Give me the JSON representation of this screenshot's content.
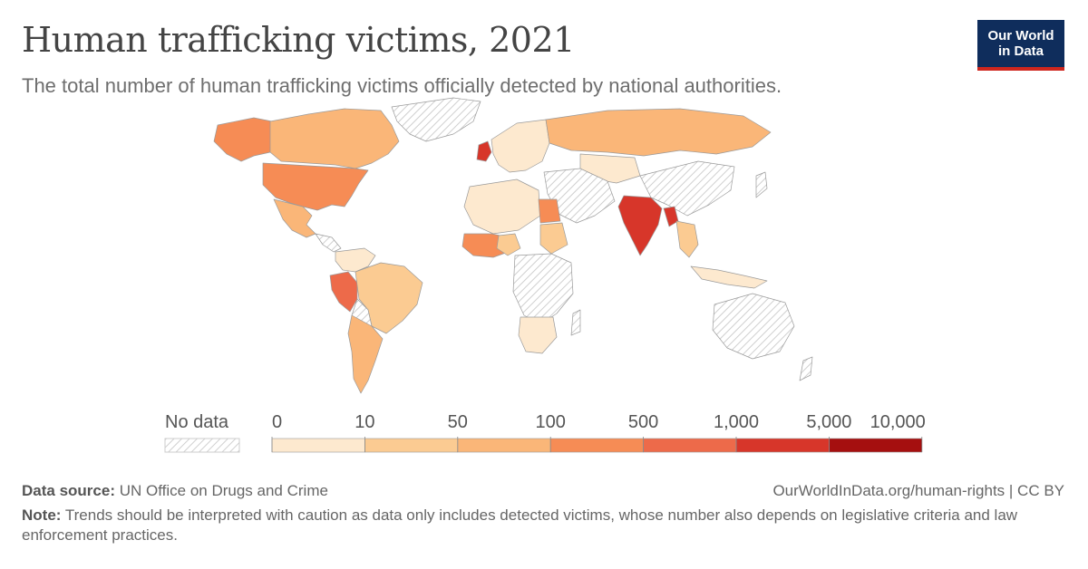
{
  "header": {
    "title": "Human trafficking victims, 2021",
    "subtitle": "The total number of human trafficking victims officially detected by national authorities."
  },
  "logo": {
    "line1": "Our World",
    "line2": "in Data",
    "bg_color": "#0f2d5c",
    "accent_color": "#ce261e"
  },
  "legend": {
    "no_data_label": "No data",
    "tick_labels": [
      "0",
      "10",
      "50",
      "100",
      "500",
      "1,000",
      "5,000",
      "10,000"
    ],
    "colors": [
      "#fde9cf",
      "#fbcb92",
      "#fab678",
      "#f68c55",
      "#ed6a4a",
      "#d7362a",
      "#a50f0f"
    ]
  },
  "map": {
    "no_data_color": "#d9d9d9",
    "highlighted": [
      {
        "name": "United Kingdom",
        "bin": 5
      },
      {
        "name": "India",
        "bin": 5
      },
      {
        "name": "Bangladesh",
        "bin": 5
      },
      {
        "name": "Peru",
        "bin": 4
      },
      {
        "name": "United States",
        "bin": 3
      },
      {
        "name": "Egypt",
        "bin": 3
      },
      {
        "name": "Nigeria",
        "bin": 2
      },
      {
        "name": "Canada",
        "bin": 2
      },
      {
        "name": "Russia",
        "bin": 2
      },
      {
        "name": "Brazil",
        "bin": 1
      },
      {
        "name": "Argentina",
        "bin": 1
      },
      {
        "name": "Sudan",
        "bin": 1
      },
      {
        "name": "Kazakhstan",
        "bin": 0
      }
    ]
  },
  "footer": {
    "source_label": "Data source:",
    "source_value": "UN Office on Drugs and Crime",
    "url": "OurWorldInData.org/human-rights | CC BY",
    "note_label": "Note:",
    "note_value": "Trends should be interpreted with caution as data only includes detected victims, whose number also depends on legislative criteria and law enforcement practices."
  }
}
